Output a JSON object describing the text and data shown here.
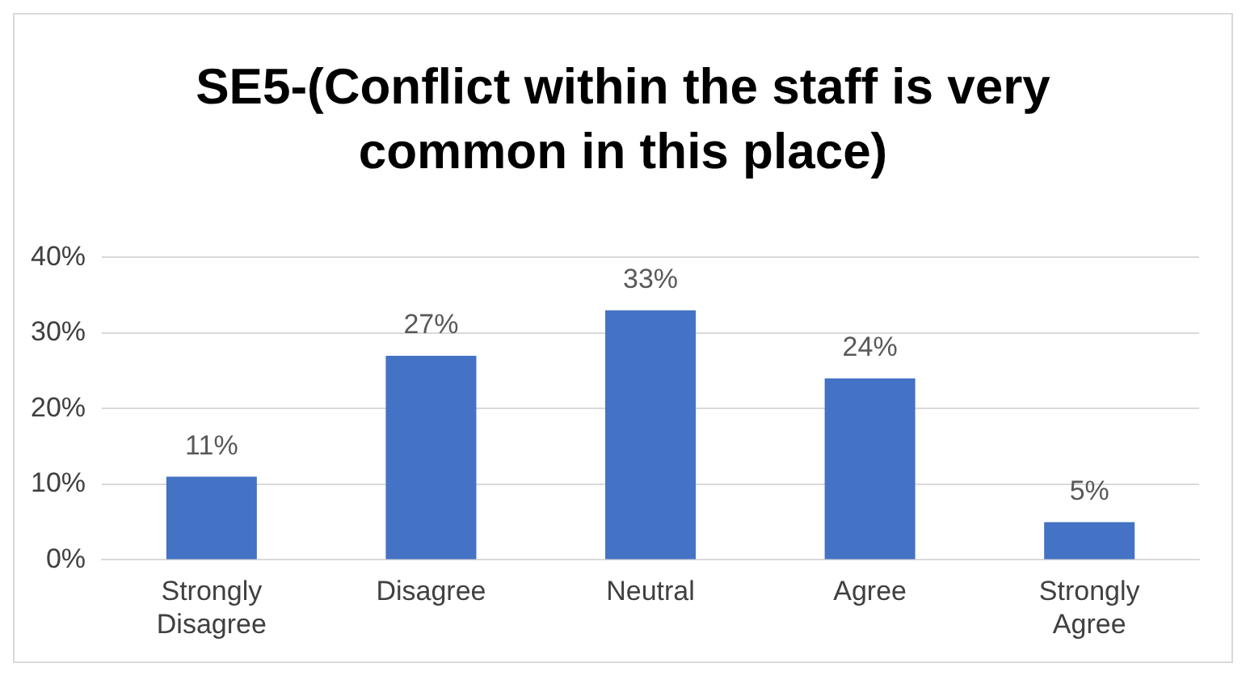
{
  "chart_data": {
    "type": "bar",
    "title": "SE5-(Conflict within the staff is very common in this place)",
    "categories": [
      "Strongly Disagree",
      "Disagree",
      "Neutral",
      "Agree",
      "Strongly Agree"
    ],
    "values": [
      11,
      27,
      33,
      24,
      5
    ],
    "color": "#4472c4",
    "value_labels": [
      "11%",
      "27%",
      "33%",
      "24%",
      "5%"
    ],
    "ylim": [
      0,
      40
    ],
    "yticks": [
      {
        "value": 0,
        "label": "0%"
      },
      {
        "value": 10,
        "label": "10%"
      },
      {
        "value": 20,
        "label": "20%"
      },
      {
        "value": 30,
        "label": "30%"
      },
      {
        "value": 40,
        "label": "40%"
      }
    ],
    "grid": "y"
  }
}
